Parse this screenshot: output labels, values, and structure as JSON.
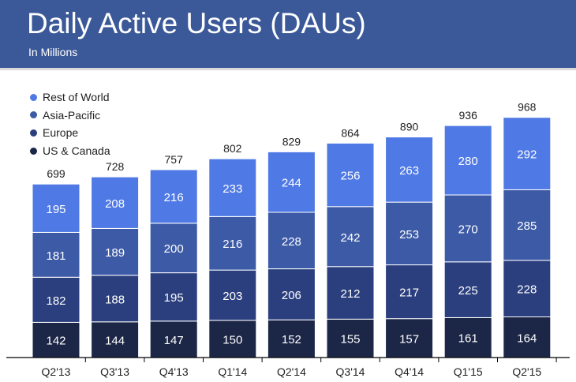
{
  "header": {
    "title": "Daily Active Users (DAUs)",
    "subtitle": "In Millions"
  },
  "colors": {
    "header_bg": "#3b5998",
    "rest_of_world": "#4f79e4",
    "asia_pacific": "#3c5aa6",
    "europe": "#2b3f7e",
    "us_canada": "#1c2747",
    "axis": "#000000"
  },
  "chart_data": {
    "type": "bar",
    "stacked": true,
    "categories": [
      "Q2'13",
      "Q3'13",
      "Q4'13",
      "Q1'14",
      "Q2'14",
      "Q3'14",
      "Q4'14",
      "Q1'15",
      "Q2'15"
    ],
    "series": [
      {
        "name": "US & Canada",
        "color": "#1c2747",
        "values": [
          142,
          144,
          147,
          150,
          152,
          155,
          157,
          161,
          164
        ]
      },
      {
        "name": "Europe",
        "color": "#2b3f7e",
        "values": [
          182,
          188,
          195,
          203,
          206,
          212,
          217,
          225,
          228
        ]
      },
      {
        "name": "Asia-Pacific",
        "color": "#3c5aa6",
        "values": [
          181,
          189,
          200,
          216,
          228,
          242,
          253,
          270,
          285
        ]
      },
      {
        "name": "Rest of World",
        "color": "#4f79e4",
        "values": [
          195,
          208,
          216,
          233,
          244,
          256,
          263,
          280,
          292
        ]
      }
    ],
    "totals": [
      699,
      728,
      757,
      802,
      829,
      864,
      890,
      936,
      968
    ],
    "legend_position": "top-left",
    "grid": false,
    "ylim": [
      0,
      1000
    ]
  }
}
